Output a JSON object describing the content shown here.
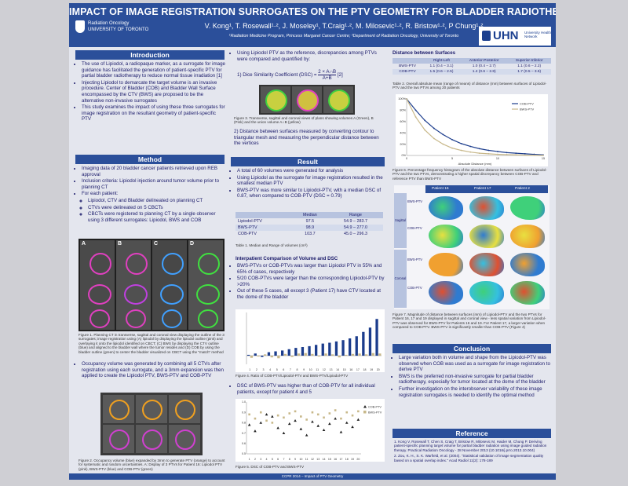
{
  "header": {
    "title": "IMPACT OF IMAGE REGISTRATION SURROGATES ON THE PTV GEOMETRY FOR BLADDER RADIOTHERAPY",
    "authors": "V. Kong¹, T. Rosewall¹·², J. Moseley¹, T.Craig¹·², M. Milosevic¹·², R. Bristow¹·², P Chung¹·²",
    "affiliations": "¹Radiation Medicine Program, Princess Margaret Cancer Centre; ²Department of Radiation Oncology, University of Toronto",
    "logo_left_line1": "Radiation Oncology",
    "logo_left_line2": "UNIVERSITY OF TORONTO",
    "logo_right": "UHN",
    "logo_right_sub": "University Health Network"
  },
  "intro": {
    "heading": "Introduction",
    "bullets": [
      "The use of Lipiodol, a radiopaque marker, as a surrogate for image guidance has facilitated the generation of patient-specific PTV for partial bladder radiotherapy to reduce normal tissue irradiation [1]",
      "Injecting Lipiodol to demarcate the target volume is an invasive procedure. Center of Bladder (COB) and Bladder Wall Surface encompassed by the CTV (BWS) are proposed to be the alternative non-invasive surrogates",
      "This study examines the impact of using these three surrogates for image registration on the resultant geometry of patient-specific PTV"
    ]
  },
  "method": {
    "heading": "Method",
    "bullets": [
      "Imaging data of 20 bladder cancer patients retrieved upon REB approval",
      "Inclusion criteria: Lipiodol injection around tumor volume prior to planning CT",
      "For each patient:"
    ],
    "sub_bullets": [
      "Lipiodol, CTV and Bladder delineated on planning CT",
      "CTVs were delineated on 5 CBCTs",
      "CBCTs were registered to planning CT by a single observer using 3 different surrogates: Lipiodol, BWS and COB"
    ],
    "fig1_panels": [
      "A",
      "B",
      "C",
      "D"
    ],
    "fig1_caption": "Figure 1. Planning CT in transverse, sagittal and coronal view displaying the outline of the 3 surrogates; image registration using (A) lipiodol by displaying the lipiodol outline (pink) and overlaying it onto the lipiodol identified on CBCT; (C) BWS by displaying the CTV outline (blue) and aligned to the bladder wall where the tumor resides and (D) COB by using the bladder outline (green) to center the bladder visualized on CBCT using the \"match\" method",
    "bullet2": "Occupancy volume was generated by combining all 5 CTVs after registration using each surrogate, and a 3mm expansion was then applied to create the Lipiodol PTV, BWS-PTV and COB-PTV",
    "fig2_caption": "Figure 2. Occupancy volume (blue) expanded by 3mm to generate PTV (orange) to account for systematic and random uncertainties. A: Display of 3 PTVs for Patient 16: Lipiodol PTV (pink), BWS-PTV (blue) and COB-PTV (green)"
  },
  "mid": {
    "bullet_intro": "Using Lipiodol PTV as the reference, discrepancies among PTVs were compared and quantified by:",
    "dsc_label": "1) Dice Similarity Coefficient (DSC) =",
    "dsc_num": "2 × A∩B",
    "dsc_den": "A+B",
    "dsc_ref": "[2]",
    "fig3_caption": "Figure 3. Transverse, sagittal and coronal views of plans showing volumes A (Green), B (Pink) and the union volume A∩B (yellow)",
    "distance_text": "2) Distance between surfaces measured by converting contour to triangular mesh and measuring the perpendicular distance between the vertices"
  },
  "result": {
    "heading": "Result",
    "bullets": [
      "A total of 60 volumes were generated for analysis",
      "Using Lipiodol as the surrogate for image registration resulted in the smallest median PTV",
      "BWS-PTV was more similar to Lipiodol-PTV, with a median DSC of 0.87, when compared to COB-PTV (DSC = 0.79)"
    ],
    "table1": {
      "headers": [
        "",
        "Median",
        "Range"
      ],
      "rows": [
        [
          "Lipiodol-PTV",
          "97.5",
          "54.9 – 283.7"
        ],
        [
          "BWS-PTV",
          "98.9",
          "54.9 – 277.0"
        ],
        [
          "COB-PTV",
          "103.7",
          "45.0 – 296.3"
        ]
      ],
      "caption": "Table 1. Median and Range of volumes (cm³)"
    },
    "interpatient_heading": "Interpatient Comparison of Volume and DSC",
    "inter_bullets": [
      "BWS-PTVs or COB-PTVs was larger than Lipiodol PTV in 55% and 65% of cases, respectively",
      "5/20 COB-PTVs were larger than the corresponding Lipiodol-PTV by >20%",
      "Out of these 5 cases, all except 3 (Patient 17) have CTV located at the dome of the bladder"
    ],
    "fig4_caption": "Figure 4. Ratio of COB-PTV/Lipiodol-PTV and BWS-PTV/Lipiodol-PTV",
    "dsc_bullet": "DSC of BWS-PTV was higher than of COB-PTV for all individual patients, except for patient 4 and 5",
    "fig5_caption": "Figure 5. DSC of COB-PTV and BWS-PTV"
  },
  "chart_data": [
    {
      "type": "bar",
      "title": "",
      "categories": [
        "1",
        "2",
        "3",
        "4",
        "5",
        "6",
        "7",
        "8",
        "9",
        "10",
        "11",
        "12",
        "13",
        "14",
        "15",
        "16",
        "17",
        "18",
        "19",
        "20"
      ],
      "series": [
        {
          "values": [
            0.02,
            0.05,
            -0.03,
            0.08,
            0.1,
            0.12,
            0.15,
            0.18,
            0.2,
            0.22,
            0.25,
            0.28,
            0.3,
            0.33,
            0.36,
            0.4,
            0.45,
            0.55,
            0.65,
            0.85
          ]
        },
        {
          "values": [
            -0.05,
            -0.02,
            0.03,
            -0.04,
            -0.06,
            0.04,
            -0.03,
            0.05,
            0.06,
            0.04,
            -0.02,
            0.05,
            0.03,
            -0.04,
            0.02,
            0.04,
            0.05,
            0.03,
            0.06,
            0.05
          ]
        }
      ]
    },
    {
      "type": "scatter",
      "title": "",
      "categories": [
        "1",
        "2",
        "3",
        "4",
        "5",
        "6",
        "7",
        "8",
        "9",
        "10",
        "11",
        "12",
        "13",
        "14",
        "15",
        "16",
        "17",
        "18",
        "19",
        "20"
      ],
      "legend": [
        "COB-PTV",
        "BWS-PTV"
      ],
      "series": [
        {
          "name": "COB-PTV",
          "values": [
            0.78,
            0.72,
            0.8,
            0.88,
            0.86,
            0.75,
            0.7,
            0.79,
            0.82,
            0.74,
            0.68,
            0.81,
            0.77,
            0.73,
            0.79,
            0.84,
            0.71,
            0.8,
            0.76,
            0.83
          ]
        },
        {
          "name": "BWS-PTV",
          "values": [
            0.88,
            0.84,
            0.9,
            0.82,
            0.8,
            0.87,
            0.85,
            0.89,
            0.91,
            0.86,
            0.83,
            0.9,
            0.88,
            0.85,
            0.89,
            0.92,
            0.84,
            0.9,
            0.87,
            0.91
          ]
        }
      ],
      "ylim": [
        0.5,
        1.0
      ]
    },
    {
      "type": "line",
      "title": "",
      "xlabel": "Absolute Distance (mm)",
      "ylabel": "",
      "legend": [
        "COB-PTV",
        "BWS-PTV"
      ],
      "series": [
        {
          "name": "COB-PTV",
          "x": [
            0,
            1,
            2,
            3,
            4,
            5,
            6,
            7,
            8,
            9,
            10,
            11,
            12,
            13,
            14,
            15
          ],
          "values": [
            100,
            80,
            62,
            48,
            37,
            28,
            21,
            16,
            12,
            9,
            7,
            5,
            4,
            3,
            2,
            1
          ]
        },
        {
          "name": "BWS-PTV",
          "x": [
            0,
            1,
            2,
            3,
            4,
            5,
            6,
            7,
            8,
            9,
            10,
            11,
            12,
            13,
            14,
            15
          ],
          "values": [
            100,
            68,
            45,
            30,
            20,
            13,
            9,
            6,
            4,
            3,
            2,
            1.5,
            1,
            0.5,
            0.3,
            0.1
          ]
        }
      ],
      "ylim": [
        0,
        100
      ]
    }
  ],
  "right": {
    "dist_heading": "Distance between Surfaces",
    "table2": {
      "headers": [
        "",
        "Right-Left",
        "Anterior-Posterior",
        "Superior-Inferior"
      ],
      "rows": [
        [
          "BWS-PTV",
          "1.1 (0.4 – 3.1)",
          "1.0 (0.4 – 2.7)",
          "1.1 (0.6 – 2.2)"
        ],
        [
          "COB-PTV",
          "1.5 (0.6 – 2.5)",
          "1.4 (0.6 – 2.8)",
          "1.7 (0.5 – 3.6)"
        ]
      ],
      "caption": "Table 2. Overall absolute mean (range of means) of distance (mm) between surfaces of Lipiodol-PTV and the two PTVs among 20 patients"
    },
    "fig6_caption": "Figure 6. Percentage frequency histogram of the absolute distance between surfaces of Lipiodol-PTV and the two PTVs, demonstrating a higher spatial discrepancy between COB-PTV and reference PTV than BWS-PTV",
    "fig7_cols": [
      "Patient 16",
      "Patient 17",
      "Patient 2"
    ],
    "fig7_rows": [
      "BWS-PTV",
      "COB-PTV",
      "BWS-PTV",
      "COB-PTV"
    ],
    "fig7_groups": [
      "Sagittal",
      "Coronal"
    ],
    "fig7_caption": "Figure 7. Magnitude of distance between surfaces (mm) of Lipiodol-PTV and the two PTVs for Patient 16, 17 and 19 displayed in sagittal and coronal view - less spatial variation from Lipiodol-PTV was observed for BWS-PTV for Patients 16 and 19. For Patient 17, a larger variation when compared to COB-PTV. BWS-PTV is significantly smaller than COB-PTV (Figure 4)",
    "conclusion": {
      "heading": "Conclusion",
      "bullets": [
        "Large variation both in volume and shape from the Lipiodol-PTV was observed when COB was used as a surrogate for image registration to derive PTV",
        "BWS is the preferred non-invasive surrogate for partial bladder radiotherapy, especially for tumor located at the dome of the bladder",
        "Further investigation on the interobserver variability of these image registration surrogates is needed to identify the optimal method"
      ]
    },
    "reference": {
      "heading": "Reference",
      "items": [
        "1. Kong V, Rosewall T, Chen S, Craig T, Bristow R, Milosevic M, Haider M, Chung P. Deriving patient-specific planning target volume for partial bladder radiation using image guided radiation therapy. Practical Radiation Oncology - 28 November 2013 (10.1016/j.prro.2013.10.004)",
        "2. Zou, K. H., S. K. Warfield, et al. (2004). \"Statistical validation of image segmentation quality based on a spatial overlap index.\" Acad Radiol 11(2): 178-189"
      ]
    }
  },
  "footer": "CCPR 2014 – Impact of PTV Geometry",
  "colors": {
    "header": "#2b4f9a",
    "background": "#e4e6ee",
    "text": "#1a1a6a",
    "accent_bar": "#1b3c8c",
    "accent_tan": "#c8b88a"
  }
}
